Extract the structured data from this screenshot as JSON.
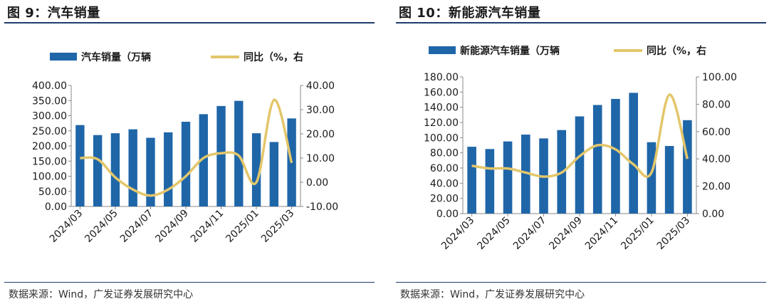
{
  "colors": {
    "bar": "#1f66a8",
    "line": "#e3c66b",
    "axis": "#888888",
    "rule": "#1f3b6e"
  },
  "panels": [
    {
      "title": "图 9：汽车销量",
      "source": "数据来源：Wind，广发证券发展研究中心",
      "chart_data": {
        "type": "bar+line",
        "categories": [
          "2024/03",
          "2024/04",
          "2024/05",
          "2024/06",
          "2024/07",
          "2024/08",
          "2024/09",
          "2024/10",
          "2024/11",
          "2024/12",
          "2025/01",
          "2025/02",
          "2025/03"
        ],
        "x_tick_labels": [
          "2024/03",
          "2024/05",
          "2024/07",
          "2024/09",
          "2024/11",
          "2025/01",
          "2025/03"
        ],
        "series": [
          {
            "name": "汽车销量（万辆",
            "type": "bar",
            "axis": "left",
            "values": [
              269,
              236,
              242,
              255,
              227,
              245,
              280,
              305,
              332,
              349,
              242,
              213,
              291
            ]
          },
          {
            "name": "同比（%，右",
            "type": "line",
            "axis": "right",
            "values": [
              10,
              9.5,
              2,
              -3,
              -5.5,
              -3,
              2.5,
              10,
              12,
              11,
              0,
              34,
              8
            ]
          }
        ],
        "ylim_left": [
          0,
          400
        ],
        "ylim_right": [
          -10,
          40
        ],
        "yticks_left": [
          "400.00",
          "350.00",
          "300.00",
          "250.00",
          "200.00",
          "150.00",
          "100.00",
          "50.00",
          "0.00"
        ],
        "yticks_right": [
          "40.00",
          "30.00",
          "20.00",
          "10.00",
          "0.00",
          "-10.00"
        ],
        "legend_position": "top",
        "grid": false
      }
    },
    {
      "title": "图 10：新能源汽车销量",
      "source": "数据来源：Wind，广发证券发展研究中心",
      "chart_data": {
        "type": "bar+line",
        "categories": [
          "2024/03",
          "2024/04",
          "2024/05",
          "2024/06",
          "2024/07",
          "2024/08",
          "2024/09",
          "2024/10",
          "2024/11",
          "2024/12",
          "2025/01",
          "2025/02",
          "2025/03"
        ],
        "x_tick_labels": [
          "2024/03",
          "2024/05",
          "2024/07",
          "2024/09",
          "2024/11",
          "2025/01",
          "2025/03"
        ],
        "series": [
          {
            "name": "新能源汽车销量（万辆",
            "type": "bar",
            "axis": "left",
            "values": [
              88,
              85,
              95,
              104,
              99,
              110,
              128,
              143,
              151,
              159,
              94,
              89,
              123
            ]
          },
          {
            "name": "同比（%，右",
            "type": "line",
            "axis": "right",
            "values": [
              35,
              33,
              33,
              30,
              27,
              30,
              42,
              50,
              47,
              36,
              30,
              87,
              40
            ]
          }
        ],
        "ylim_left": [
          0,
          180
        ],
        "ylim_right": [
          0,
          100
        ],
        "yticks_left": [
          "180.00",
          "160.00",
          "140.00",
          "120.00",
          "100.00",
          "80.00",
          "60.00",
          "40.00",
          "20.00",
          "0.00"
        ],
        "yticks_right": [
          "100.00",
          "80.00",
          "60.00",
          "40.00",
          "20.00",
          "0.00"
        ],
        "legend_position": "top",
        "grid": false
      }
    }
  ]
}
